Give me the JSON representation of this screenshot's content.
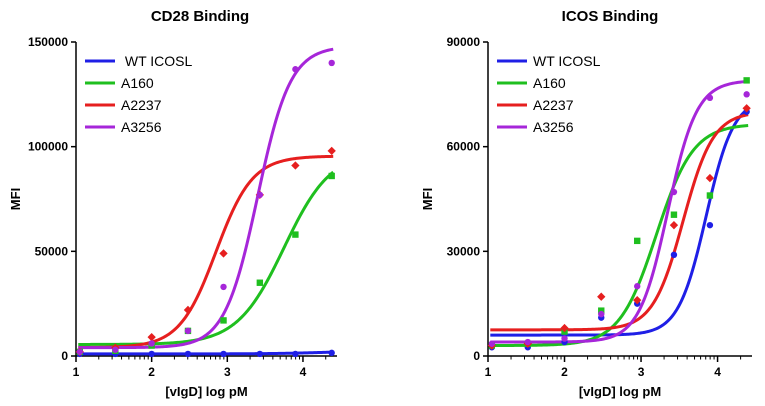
{
  "chart_data": [
    {
      "type": "scatter",
      "title": "CD28 Binding",
      "xlabel": "[vIgD] log pM",
      "ylabel": "MFI",
      "xlim": [
        1,
        4.45
      ],
      "ylim": [
        0,
        150000
      ],
      "xticks": [
        1,
        2,
        3,
        4
      ],
      "yticks": [
        0,
        50000,
        100000,
        150000
      ],
      "legend_position": "top-left",
      "series": [
        {
          "name": " WT ICOSL",
          "color": "#1f1fe6",
          "marker": "circle",
          "points": [
            [
              1.05,
              1000
            ],
            [
              1.52,
              1000
            ],
            [
              2.0,
              1000
            ],
            [
              2.48,
              1000
            ],
            [
              2.95,
              1000
            ],
            [
              3.43,
              1000
            ],
            [
              3.9,
              1000
            ],
            [
              4.38,
              1500
            ]
          ],
          "fit": {
            "bottom": 1000,
            "top": 2500,
            "ec50": 4.3,
            "hill": 1.2
          }
        },
        {
          "name": "A160",
          "color": "#1fbf1f",
          "marker": "square",
          "points": [
            [
              1.05,
              2000
            ],
            [
              1.52,
              2500
            ],
            [
              2.0,
              5000
            ],
            [
              2.48,
              12000
            ],
            [
              2.95,
              17000
            ],
            [
              3.43,
              35000
            ],
            [
              3.9,
              58000
            ],
            [
              4.38,
              86000
            ]
          ],
          "fit": {
            "bottom": 5500,
            "top": 98000,
            "ec50": 3.75,
            "hill": 1.4
          }
        },
        {
          "name": "A2237",
          "color": "#e61f1f",
          "marker": "diamond",
          "points": [
            [
              1.05,
              2000
            ],
            [
              1.52,
              4000
            ],
            [
              2.0,
              9000
            ],
            [
              2.48,
              22000
            ],
            [
              2.95,
              49000
            ],
            [
              3.43,
              77000
            ],
            [
              3.9,
              91000
            ],
            [
              4.38,
              98000
            ]
          ],
          "fit": {
            "bottom": 4000,
            "top": 95500,
            "ec50": 2.85,
            "hill": 1.8
          }
        },
        {
          "name": "A3256",
          "color": "#a626d9",
          "marker": "circle",
          "points": [
            [
              1.05,
              2000
            ],
            [
              1.52,
              3000
            ],
            [
              2.0,
              6000
            ],
            [
              2.48,
              12000
            ],
            [
              2.95,
              33000
            ],
            [
              3.43,
              77000
            ],
            [
              3.9,
              137000
            ],
            [
              4.38,
              140000
            ]
          ],
          "fit": {
            "bottom": 4000,
            "top": 148000,
            "ec50": 3.4,
            "hill": 2.0
          }
        }
      ]
    },
    {
      "type": "scatter",
      "title": "ICOS  Binding",
      "xlabel": "[vIgD] log pM",
      "ylabel": "MFI",
      "xlim": [
        1,
        4.45
      ],
      "ylim": [
        0,
        90000
      ],
      "xticks": [
        1,
        2,
        3,
        4
      ],
      "yticks": [
        0,
        30000,
        60000,
        90000
      ],
      "legend_position": "top-left",
      "series": [
        {
          "name": "WT ICOSL",
          "color": "#1f1fe6",
          "marker": "circle",
          "points": [
            [
              1.05,
              2500
            ],
            [
              1.52,
              2500
            ],
            [
              2.0,
              4000
            ],
            [
              2.48,
              11000
            ],
            [
              2.95,
              15000
            ],
            [
              3.43,
              29000
            ],
            [
              3.9,
              37500
            ],
            [
              4.38,
              70000
            ]
          ],
          "fit": {
            "bottom": 6000,
            "top": 74000,
            "ec50": 3.85,
            "hill": 2.4
          }
        },
        {
          "name": "A160",
          "color": "#1fbf1f",
          "marker": "square",
          "points": [
            [
              1.05,
              3000
            ],
            [
              1.52,
              3500
            ],
            [
              2.0,
              7000
            ],
            [
              2.48,
              13000
            ],
            [
              2.95,
              33000
            ],
            [
              3.43,
              40500
            ],
            [
              3.9,
              46000
            ],
            [
              4.38,
              79000
            ]
          ],
          "fit": {
            "bottom": 3000,
            "top": 66500,
            "ec50": 3.2,
            "hill": 1.8
          }
        },
        {
          "name": "A2237",
          "color": "#e61f1f",
          "marker": "diamond",
          "points": [
            [
              1.05,
              3000
            ],
            [
              1.52,
              3500
            ],
            [
              2.0,
              8000
            ],
            [
              2.48,
              17000
            ],
            [
              2.95,
              16000
            ],
            [
              3.43,
              37500
            ],
            [
              3.9,
              51000
            ],
            [
              4.38,
              71000
            ]
          ],
          "fit": {
            "bottom": 7500,
            "top": 70000,
            "ec50": 3.55,
            "hill": 2.2
          }
        },
        {
          "name": "A3256",
          "color": "#a626d9",
          "marker": "circle",
          "points": [
            [
              1.05,
              3500
            ],
            [
              1.52,
              4000
            ],
            [
              2.0,
              5000
            ],
            [
              2.48,
              12000
            ],
            [
              2.95,
              20000
            ],
            [
              3.43,
              47000
            ],
            [
              3.9,
              74000
            ],
            [
              4.38,
              75000
            ]
          ],
          "fit": {
            "bottom": 4000,
            "top": 79000,
            "ec50": 3.35,
            "hill": 2.3
          }
        }
      ]
    }
  ]
}
